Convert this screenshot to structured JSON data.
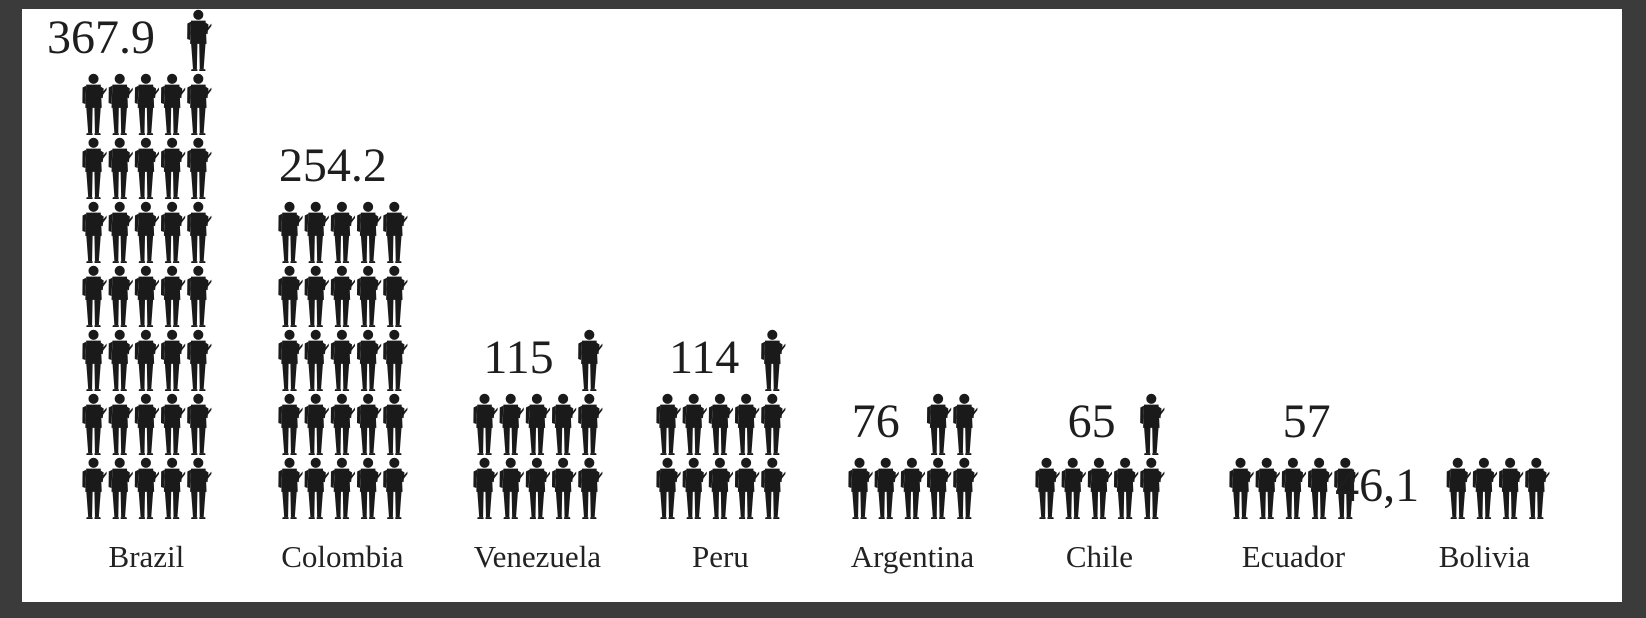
{
  "chart_data": {
    "type": "bar",
    "title": "",
    "xlabel": "",
    "ylabel": "",
    "categories": [
      "Brazil",
      "Colombia",
      "Venezuela",
      "Peru",
      "Argentina",
      "Chile",
      "Ecuador",
      "Bolivia"
    ],
    "values": [
      367.9,
      254.2,
      115,
      114,
      76,
      65,
      57,
      46.1
    ],
    "value_labels": [
      "367.9",
      "254.2",
      "115",
      "114",
      "76",
      "65",
      "57",
      "46,1"
    ],
    "icon": "soldier-icon",
    "units_per_icon": 10,
    "icons_per_row": 5,
    "grid": false,
    "colors": {
      "icon": "#1a1a1a",
      "background": "#ffffff",
      "frame": "#3b3b3b",
      "text": "#222222"
    }
  }
}
